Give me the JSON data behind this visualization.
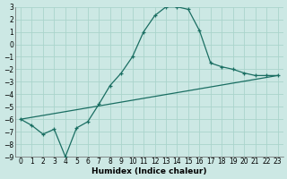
{
  "xlabel": "Humidex (Indice chaleur)",
  "bg_color": "#cce8e4",
  "grid_color": "#aad4cc",
  "line_color": "#1a6e62",
  "xlim": [
    -0.5,
    23.5
  ],
  "ylim_bottom": -9,
  "ylim_top": 3,
  "xticks": [
    0,
    1,
    2,
    3,
    4,
    5,
    6,
    7,
    8,
    9,
    10,
    11,
    12,
    13,
    14,
    15,
    16,
    17,
    18,
    19,
    20,
    21,
    22,
    23
  ],
  "yticks": [
    3,
    2,
    1,
    0,
    -1,
    -2,
    -3,
    -4,
    -5,
    -6,
    -7,
    -8,
    -9
  ],
  "curve1_x": [
    0,
    1,
    2,
    3,
    4,
    5,
    6,
    7,
    8,
    9,
    10,
    11,
    12,
    13,
    14,
    15,
    16,
    17,
    18,
    19,
    20,
    21,
    22,
    23
  ],
  "curve1_y": [
    -6.0,
    -6.5,
    -7.2,
    -6.8,
    -9.0,
    -6.7,
    -6.2,
    -4.8,
    -3.3,
    -2.3,
    -1.0,
    1.0,
    2.3,
    3.0,
    3.0,
    2.8,
    1.1,
    -1.5,
    -1.8,
    -2.0,
    -2.3,
    -2.5,
    -2.5,
    -2.5
  ],
  "curve2_x": [
    0,
    23
  ],
  "curve2_y": [
    -6.0,
    -2.5
  ],
  "xlabel_fontsize": 6.5,
  "tick_fontsize": 5.5
}
